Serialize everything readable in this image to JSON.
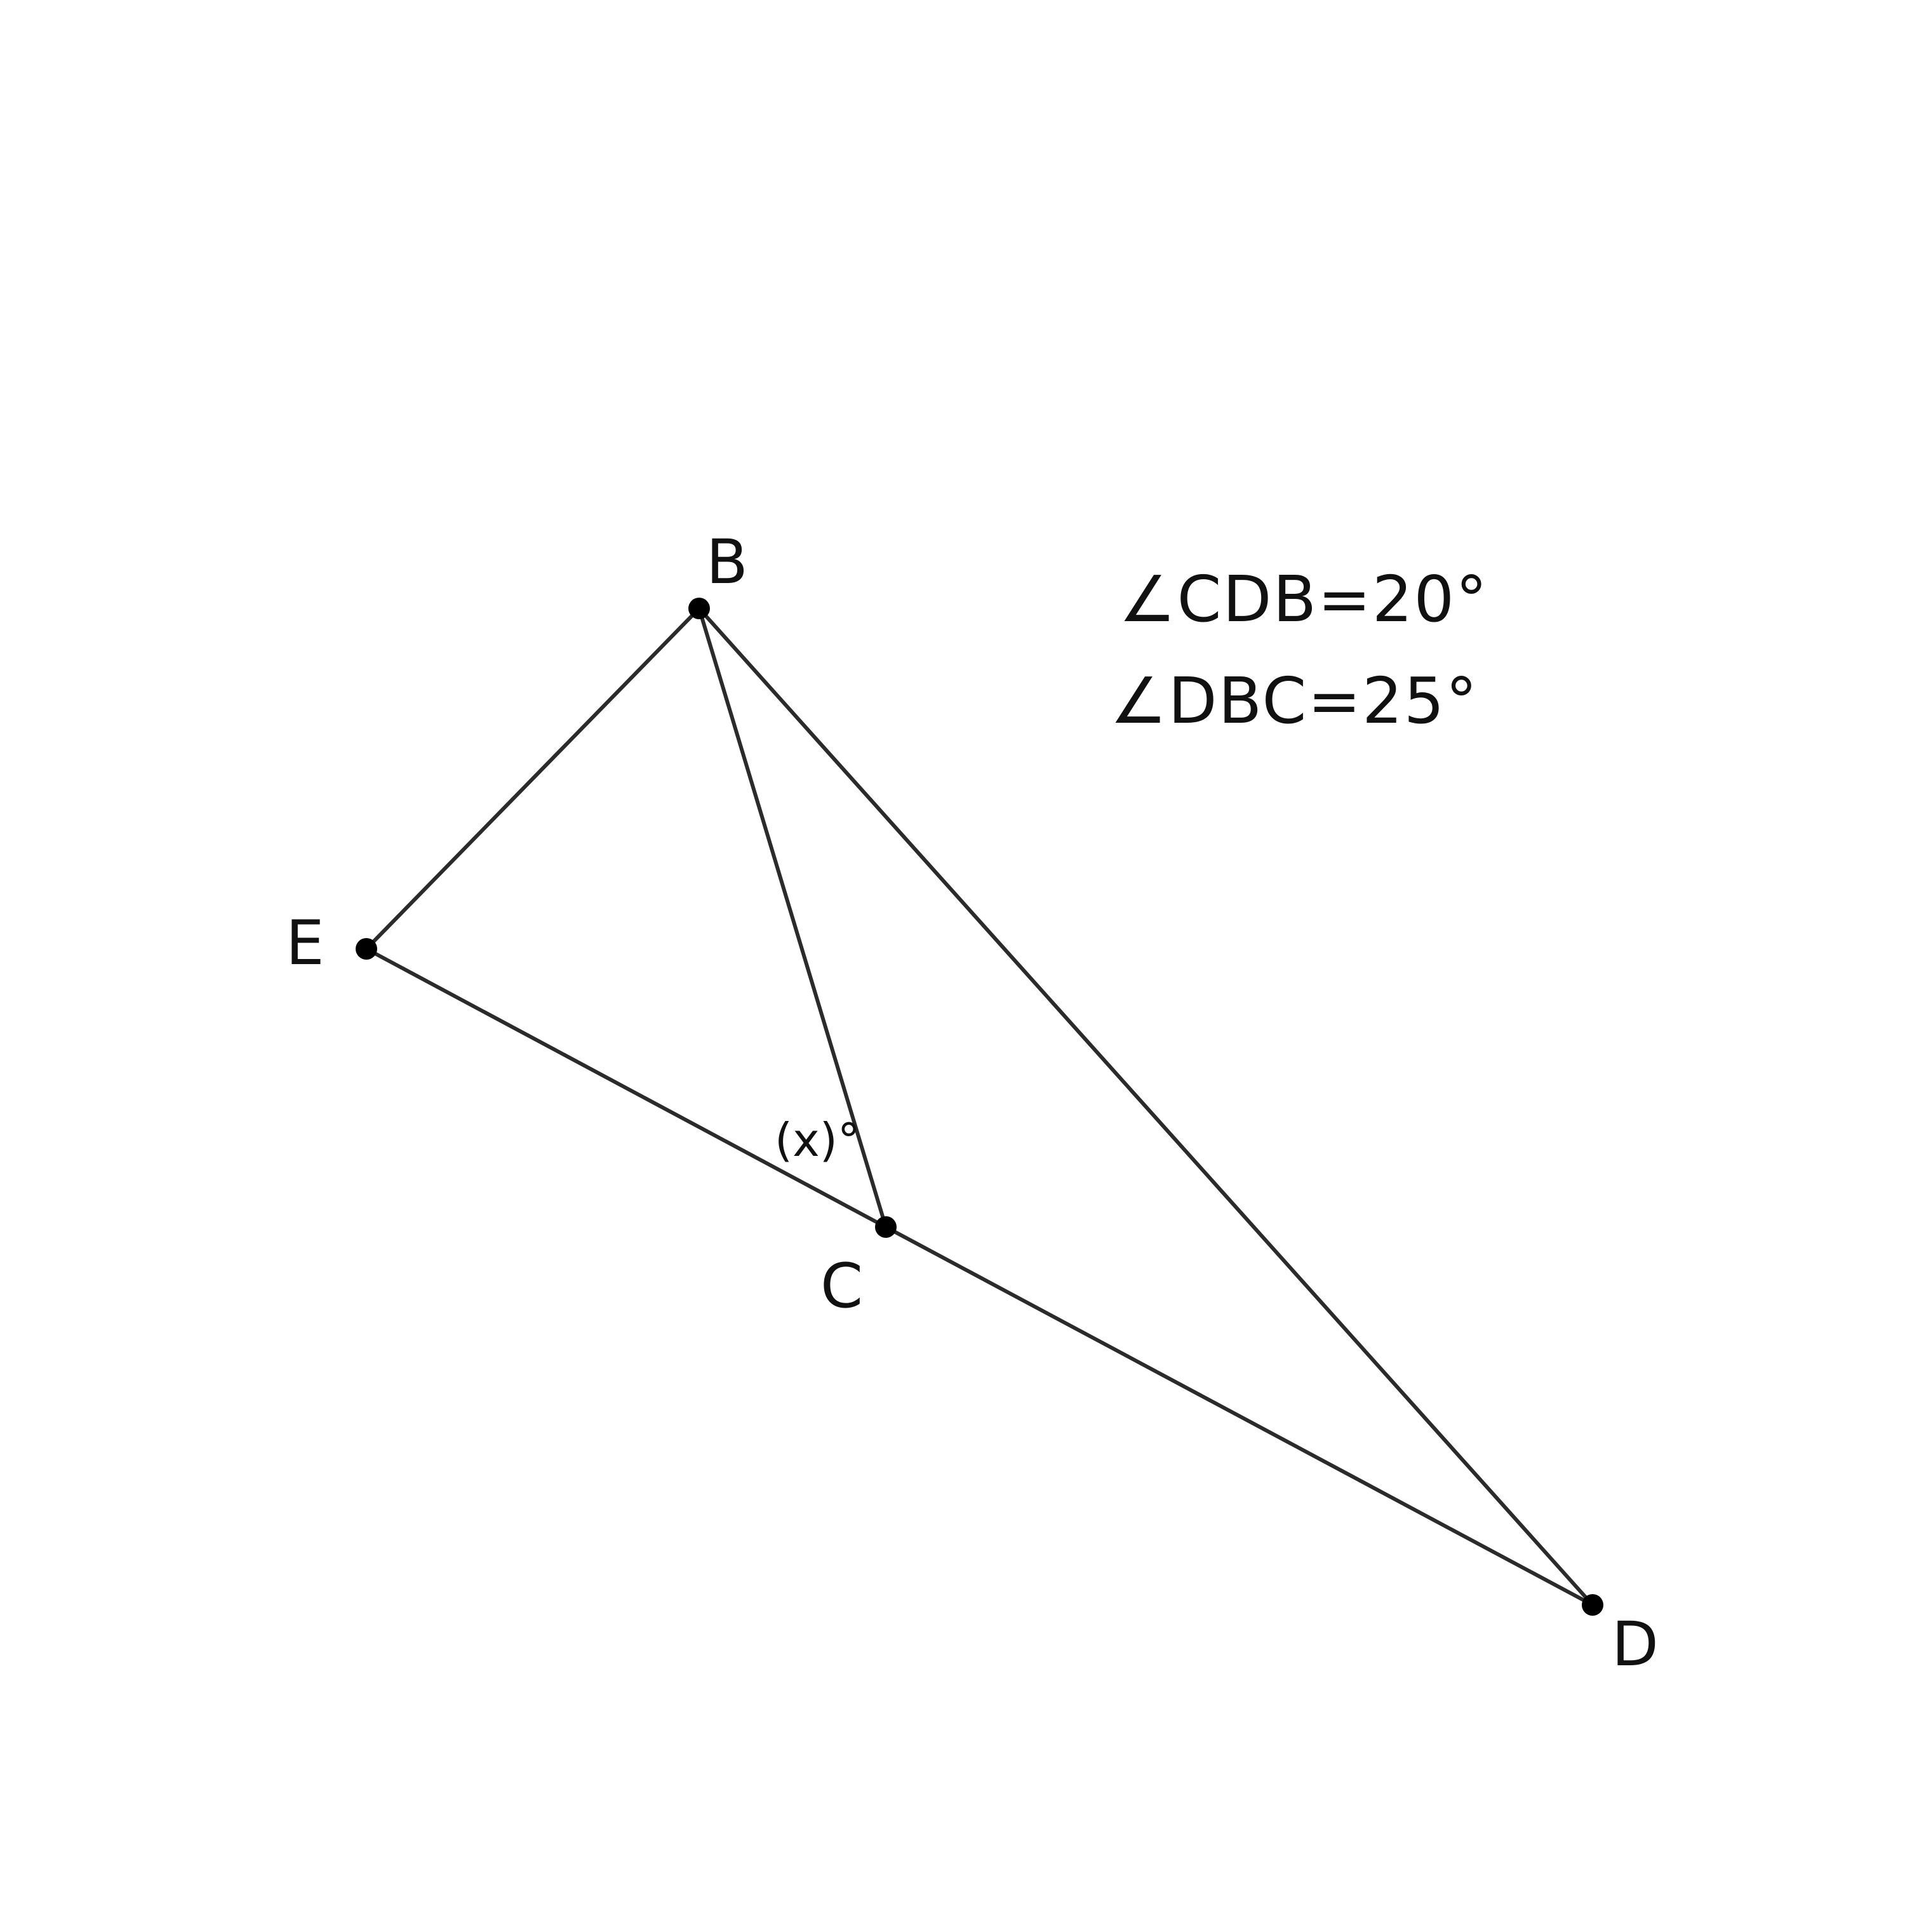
{
  "points": {
    "B": {
      "label": "B"
    },
    "E": {
      "label": "E"
    },
    "C": {
      "label": "C"
    },
    "D": {
      "label": "D"
    }
  },
  "segments": [
    {
      "name": "segment-BE",
      "from": "B",
      "to": "E"
    },
    {
      "name": "segment-BC",
      "from": "B",
      "to": "C"
    },
    {
      "name": "segment-BD",
      "from": "B",
      "to": "D"
    },
    {
      "name": "segment-EC",
      "from": "E",
      "to": "C"
    },
    {
      "name": "segment-CD",
      "from": "C",
      "to": "D"
    }
  ],
  "angle_mark": {
    "label": "(x)°"
  },
  "given": [
    "∠CDB=20°",
    "∠DBC=25°"
  ],
  "colors": {
    "line": "#2b2b2b",
    "point": "#000000",
    "text": "#111111"
  }
}
